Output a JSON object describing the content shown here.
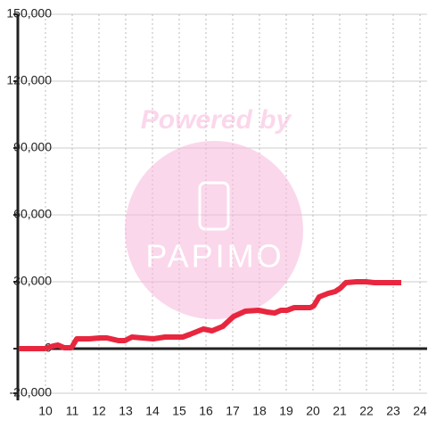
{
  "chart_data": {
    "type": "line",
    "watermark": {
      "title": "Powered by",
      "logo_text": "PAPIMO"
    },
    "x": [
      9.0,
      9.97,
      10.3,
      10.47,
      10.7,
      10.97,
      11.17,
      11.63,
      12.03,
      12.3,
      12.73,
      12.97,
      13.23,
      13.63,
      14.03,
      14.47,
      15.13,
      15.4,
      15.9,
      16.23,
      16.63,
      17.03,
      17.47,
      17.97,
      18.3,
      18.57,
      18.8,
      19.03,
      19.3,
      19.63,
      19.9,
      20.03,
      20.23,
      20.57,
      20.83,
      21.03,
      21.23,
      21.63,
      21.97,
      22.3,
      23.3
    ],
    "series": [
      {
        "color": "#e8263e",
        "values": [
          0,
          0,
          1200,
          1600,
          400,
          400,
          4400,
          4400,
          4800,
          4800,
          3600,
          3600,
          5200,
          4800,
          4400,
          5200,
          5200,
          6400,
          8800,
          8000,
          10000,
          14400,
          16800,
          17200,
          16400,
          16000,
          17200,
          17200,
          18400,
          18400,
          18400,
          19200,
          23200,
          24800,
          25600,
          27200,
          29600,
          30000,
          30000,
          29600,
          29600
        ]
      }
    ],
    "xlim": [
      8.967,
      24.267
    ],
    "xticks": [
      10,
      11,
      12,
      13,
      14,
      15,
      16,
      17,
      18,
      19,
      20,
      21,
      22,
      23,
      24
    ],
    "ylim": [
      -20000,
      150000
    ],
    "yticks": [
      {
        "value": -20000,
        "label": "-20,000"
      },
      0,
      {
        "value": 30000,
        "label": "30,000"
      },
      {
        "value": 60000,
        "label": "60,000"
      },
      {
        "value": 90000,
        "label": "90,000"
      },
      {
        "value": 120000,
        "label": "120,000"
      },
      {
        "value": 150000,
        "label": "150,000"
      }
    ],
    "grid": true
  }
}
